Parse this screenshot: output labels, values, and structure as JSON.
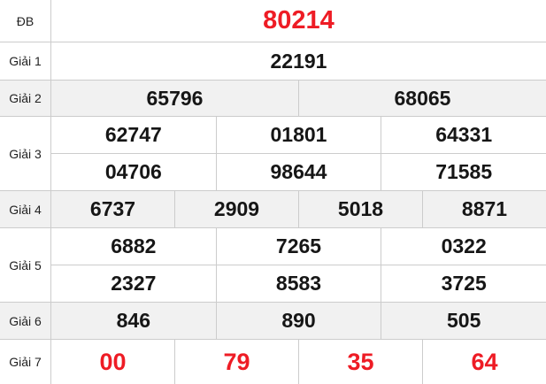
{
  "table": {
    "title": "Lottery results table",
    "colors": {
      "accent_red": "#ee1c25",
      "number_ink": "#161616",
      "shaded_row_bg": "#f1f1f1",
      "border": "#cccccc"
    },
    "rows": [
      {
        "label": "ĐB",
        "highlight": true,
        "shaded": false,
        "lines": [
          [
            "80214"
          ]
        ]
      },
      {
        "label": "Giải 1",
        "highlight": false,
        "shaded": false,
        "lines": [
          [
            "22191"
          ]
        ]
      },
      {
        "label": "Giải 2",
        "highlight": false,
        "shaded": true,
        "lines": [
          [
            "65796",
            "68065"
          ]
        ]
      },
      {
        "label": "Giải 3",
        "highlight": false,
        "shaded": false,
        "lines": [
          [
            "62747",
            "01801",
            "64331"
          ],
          [
            "04706",
            "98644",
            "71585"
          ]
        ]
      },
      {
        "label": "Giải 4",
        "highlight": false,
        "shaded": true,
        "lines": [
          [
            "6737",
            "2909",
            "5018",
            "8871"
          ]
        ]
      },
      {
        "label": "Giải 5",
        "highlight": false,
        "shaded": false,
        "lines": [
          [
            "6882",
            "7265",
            "0322"
          ],
          [
            "2327",
            "8583",
            "3725"
          ]
        ]
      },
      {
        "label": "Giải 6",
        "highlight": false,
        "shaded": true,
        "lines": [
          [
            "846",
            "890",
            "505"
          ]
        ]
      },
      {
        "label": "Giải 7",
        "highlight": true,
        "shaded": false,
        "lines": [
          [
            "00",
            "79",
            "35",
            "64"
          ]
        ]
      }
    ]
  }
}
